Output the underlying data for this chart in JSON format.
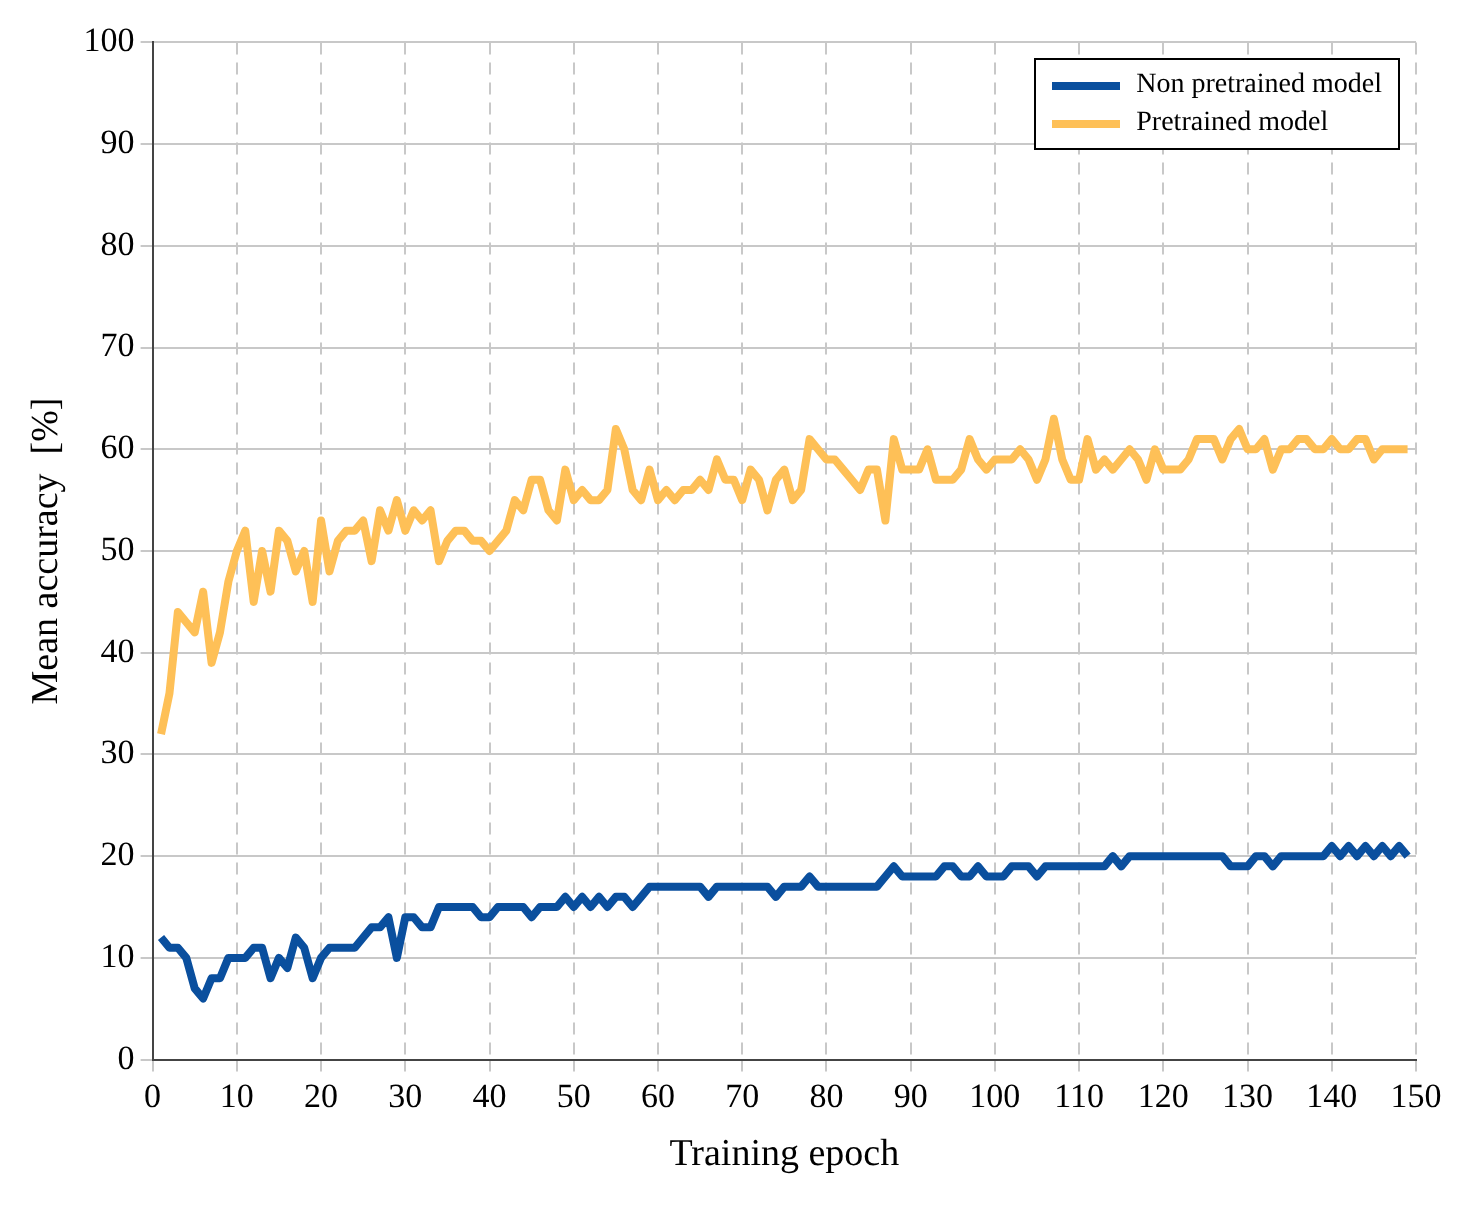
{
  "chart_data": {
    "type": "line",
    "xlabel": "Training epoch",
    "ylabel": "Mean accuracy  [%]",
    "x": [
      1,
      2,
      3,
      4,
      5,
      6,
      7,
      8,
      9,
      10,
      11,
      12,
      13,
      14,
      15,
      16,
      17,
      18,
      19,
      20,
      21,
      22,
      23,
      24,
      25,
      26,
      27,
      28,
      29,
      30,
      31,
      32,
      33,
      34,
      35,
      36,
      37,
      38,
      39,
      40,
      41,
      42,
      43,
      44,
      45,
      46,
      47,
      48,
      49,
      50,
      51,
      52,
      53,
      54,
      55,
      56,
      57,
      58,
      59,
      60,
      61,
      62,
      63,
      64,
      65,
      66,
      67,
      68,
      69,
      70,
      71,
      72,
      73,
      74,
      75,
      76,
      77,
      78,
      79,
      80,
      81,
      82,
      83,
      84,
      85,
      86,
      87,
      88,
      89,
      90,
      91,
      92,
      93,
      94,
      95,
      96,
      97,
      98,
      99,
      100,
      101,
      102,
      103,
      104,
      105,
      106,
      107,
      108,
      109,
      110,
      111,
      112,
      113,
      114,
      115,
      116,
      117,
      118,
      119,
      120,
      121,
      122,
      123,
      124,
      125,
      126,
      127,
      128,
      129,
      130,
      131,
      132,
      133,
      134,
      135,
      136,
      137,
      138,
      139,
      140,
      141,
      142,
      143,
      144,
      145,
      146,
      147,
      148,
      149
    ],
    "series": [
      {
        "name": "Non pretrained model",
        "color": "#0a4f9e",
        "values": [
          12,
          11,
          11,
          10,
          7,
          6,
          8,
          8,
          10,
          10,
          10,
          11,
          11,
          8,
          10,
          9,
          12,
          11,
          8,
          10,
          11,
          11,
          11,
          11,
          12,
          13,
          13,
          14,
          10,
          14,
          14,
          13,
          13,
          15,
          15,
          15,
          15,
          15,
          14,
          14,
          15,
          15,
          15,
          15,
          14,
          15,
          15,
          15,
          16,
          15,
          16,
          15,
          16,
          15,
          16,
          16,
          15,
          16,
          17,
          17,
          17,
          17,
          17,
          17,
          17,
          16,
          17,
          17,
          17,
          17,
          17,
          17,
          17,
          16,
          17,
          17,
          17,
          18,
          17,
          17,
          17,
          17,
          17,
          17,
          17,
          17,
          18,
          19,
          18,
          18,
          18,
          18,
          18,
          19,
          19,
          18,
          18,
          19,
          18,
          18,
          18,
          19,
          19,
          19,
          18,
          19,
          19,
          19,
          19,
          19,
          19,
          19,
          19,
          20,
          19,
          20,
          20,
          20,
          20,
          20,
          20,
          20,
          20,
          20,
          20,
          20,
          20,
          19,
          19,
          19,
          20,
          20,
          19,
          20,
          20,
          20,
          20,
          20,
          20,
          21,
          20,
          21,
          20,
          21,
          20,
          21,
          20,
          21,
          20
        ]
      },
      {
        "name": "Pretrained model",
        "color": "#fec057",
        "values": [
          32,
          36,
          44,
          43,
          42,
          46,
          39,
          42,
          47,
          50,
          52,
          45,
          50,
          46,
          52,
          51,
          48,
          50,
          45,
          53,
          48,
          51,
          52,
          52,
          53,
          49,
          54,
          52,
          55,
          52,
          54,
          53,
          54,
          49,
          51,
          52,
          52,
          51,
          51,
          50,
          51,
          52,
          55,
          54,
          57,
          57,
          54,
          53,
          58,
          55,
          56,
          55,
          55,
          56,
          62,
          60,
          56,
          55,
          58,
          55,
          56,
          55,
          56,
          56,
          57,
          56,
          59,
          57,
          57,
          55,
          58,
          57,
          54,
          57,
          58,
          55,
          56,
          61,
          60,
          59,
          59,
          58,
          57,
          56,
          58,
          58,
          53,
          61,
          58,
          58,
          58,
          60,
          57,
          57,
          57,
          58,
          61,
          59,
          58,
          59,
          59,
          59,
          60,
          59,
          57,
          59,
          63,
          59,
          57,
          57,
          61,
          58,
          59,
          58,
          59,
          60,
          59,
          57,
          60,
          58,
          58,
          58,
          59,
          61,
          61,
          61,
          59,
          61,
          62,
          60,
          60,
          61,
          58,
          60,
          60,
          61,
          61,
          60,
          60,
          61,
          60,
          60,
          61,
          61,
          59,
          60,
          60,
          60,
          60
        ]
      }
    ],
    "xlim": [
      0,
      150
    ],
    "xticks": [
      0,
      10,
      20,
      30,
      40,
      50,
      60,
      70,
      80,
      90,
      100,
      110,
      120,
      130,
      140,
      150
    ],
    "ylim": [
      0,
      100
    ],
    "yticks": [
      0,
      10,
      20,
      30,
      40,
      50,
      60,
      70,
      80,
      90,
      100
    ],
    "grid": true,
    "legend": "top right",
    "marker": "none",
    "line_style": "solid"
  }
}
